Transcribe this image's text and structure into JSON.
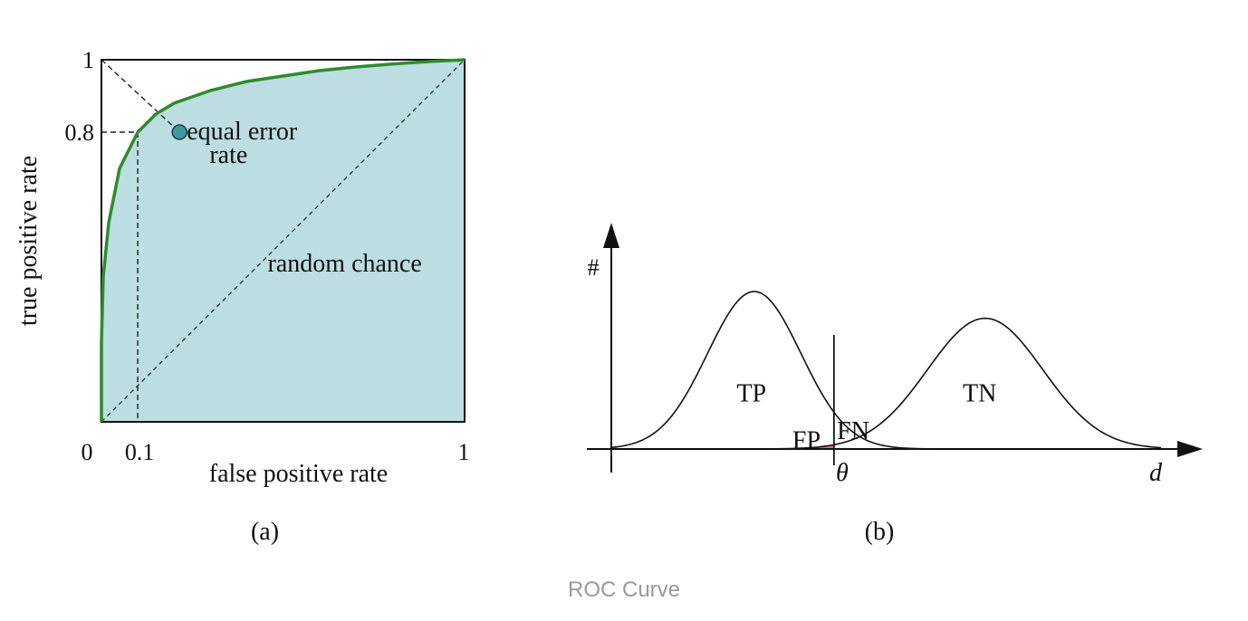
{
  "chart_data": [
    {
      "type": "line",
      "panel_label": "(a)",
      "xlabel": "false positive rate",
      "ylabel": "true positive rate",
      "xlim": [
        0,
        1
      ],
      "ylim": [
        0,
        1
      ],
      "x_ticks": [
        "0",
        "0.1",
        "1"
      ],
      "x_tick_values": [
        0,
        0.1,
        1
      ],
      "y_ticks": [
        "1",
        "0.8"
      ],
      "y_tick_values": [
        1,
        0.8
      ],
      "series": [
        {
          "points": [
            [
              0,
              0
            ],
            [
              0,
              0.22
            ],
            [
              0.005,
              0.4
            ],
            [
              0.02,
              0.55
            ],
            [
              0.05,
              0.7
            ],
            [
              0.1,
              0.8
            ],
            [
              0.15,
              0.85
            ],
            [
              0.2,
              0.88
            ],
            [
              0.3,
              0.915
            ],
            [
              0.4,
              0.94
            ],
            [
              0.5,
              0.955
            ],
            [
              0.6,
              0.97
            ],
            [
              0.7,
              0.98
            ],
            [
              0.8,
              0.988
            ],
            [
              0.9,
              0.995
            ],
            [
              1,
              1
            ]
          ],
          "color": "#2e8b2e"
        }
      ],
      "annotations": [
        {
          "text": "equal error",
          "x": 0.215,
          "y": 0.78
        },
        {
          "text": "rate",
          "x": 0.35,
          "y": 0.715
        },
        {
          "text": "random chance",
          "x": 0.67,
          "y": 0.415
        }
      ],
      "equal_error_point": [
        0.215,
        0.8
      ],
      "random_chance_line": [
        [
          0,
          0
        ],
        [
          1,
          1
        ]
      ],
      "fill_color": "#bcdde1",
      "marker_color": "#3d9aa0",
      "grid": false
    },
    {
      "type": "area",
      "panel_label": "(b)",
      "ylabel": "#",
      "xlabel": "d",
      "threshold_label": "θ",
      "xlim": [
        0,
        10
      ],
      "ylim": [
        0,
        1
      ],
      "threshold": 4.05,
      "series": [
        {
          "mean": 2.6,
          "sd": 0.85,
          "peak": 1.0
        },
        {
          "mean": 6.8,
          "sd": 1.05,
          "peak": 0.83
        }
      ],
      "region_labels": [
        {
          "text": "TP",
          "x": 2.55,
          "y": 0.36
        },
        {
          "text": "TN",
          "x": 6.7,
          "y": 0.36
        },
        {
          "text": "FP",
          "x": 3.55,
          "y": 0.06
        },
        {
          "text": "FN",
          "x": 4.4,
          "y": 0.12
        }
      ],
      "fp_fill_color": "#e8726e"
    }
  ],
  "caption": "ROC Curve"
}
